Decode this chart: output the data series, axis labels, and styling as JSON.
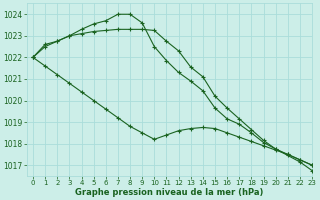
{
  "title": "Graphe pression niveau de la mer (hPa)",
  "bg_color": "#cceee8",
  "grid_color": "#aaddda",
  "line_color": "#1a6320",
  "xlim": [
    -0.5,
    23
  ],
  "ylim": [
    1016.5,
    1024.5
  ],
  "yticks": [
    1017,
    1018,
    1019,
    1020,
    1021,
    1022,
    1023,
    1024
  ],
  "xticks": [
    0,
    1,
    2,
    3,
    4,
    5,
    6,
    7,
    8,
    9,
    10,
    11,
    12,
    13,
    14,
    15,
    16,
    17,
    18,
    19,
    20,
    21,
    22,
    23
  ],
  "series": [
    [
      1022.0,
      1022.6,
      1022.75,
      1023.0,
      1023.3,
      1023.55,
      1023.7,
      1024.0,
      1024.0,
      1023.6,
      1022.5,
      1021.85,
      1021.3,
      1020.9,
      1020.45,
      1019.65,
      1019.15,
      1018.9,
      1018.5,
      1018.05,
      1017.75,
      1017.45,
      1017.15,
      1016.75
    ],
    [
      1022.0,
      1022.5,
      1022.75,
      1023.0,
      1023.1,
      1023.2,
      1023.25,
      1023.3,
      1023.3,
      1023.3,
      1023.25,
      1022.75,
      1022.3,
      1021.55,
      1021.1,
      1020.2,
      1019.65,
      1019.15,
      1018.65,
      1018.15,
      1017.75,
      1017.5,
      1017.25,
      1017.0
    ],
    [
      1022.0,
      1021.6,
      1021.2,
      1020.8,
      1020.4,
      1020.0,
      1019.6,
      1019.2,
      1018.8,
      1018.5,
      1018.2,
      1018.4,
      1018.6,
      1018.7,
      1018.75,
      1018.7,
      1018.5,
      1018.3,
      1018.1,
      1017.9,
      1017.7,
      1017.5,
      1017.25,
      1017.0
    ]
  ]
}
